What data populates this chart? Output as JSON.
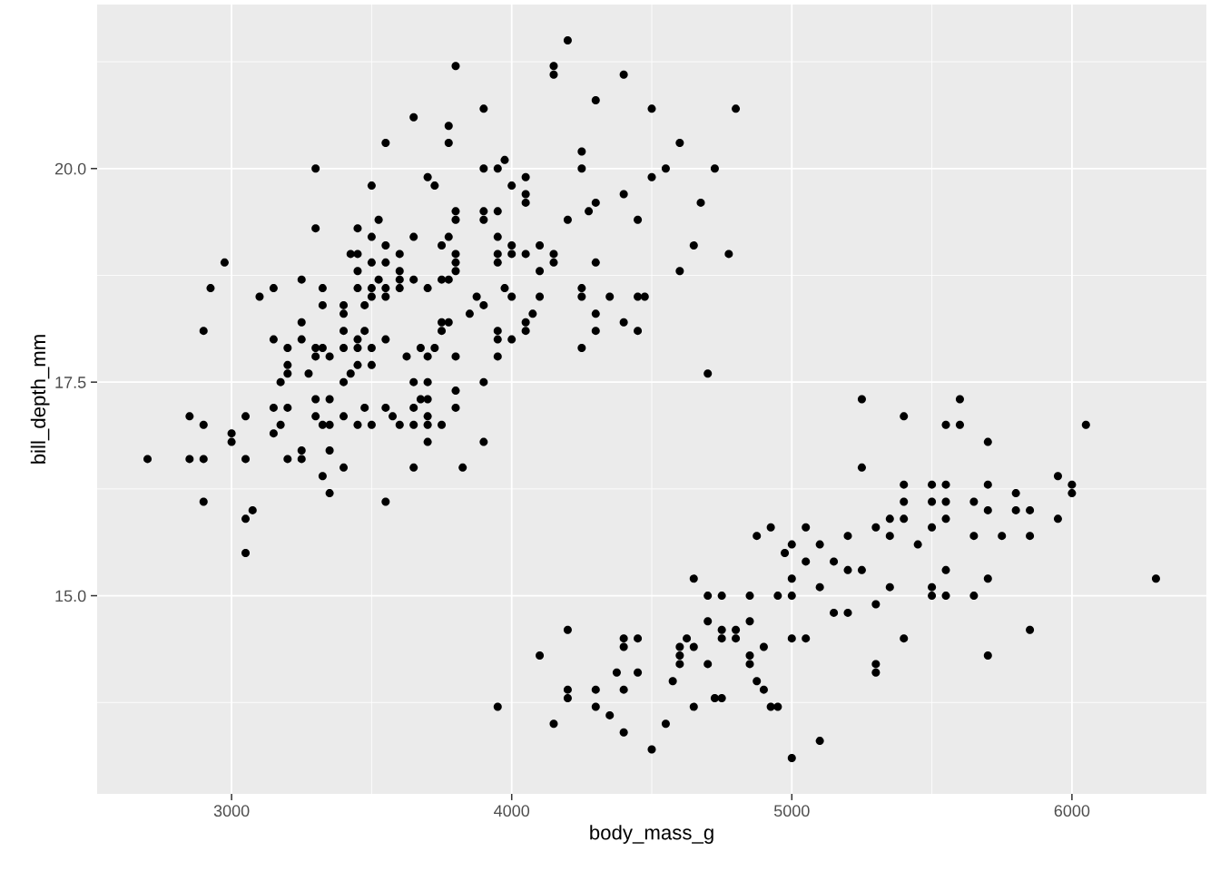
{
  "chart_data": {
    "type": "scatter",
    "xlabel": "body_mass_g",
    "ylabel": "bill_depth_mm",
    "xlim": [
      2520,
      6480
    ],
    "ylim": [
      12.68,
      21.92
    ],
    "xticks": [
      3000,
      4000,
      5000,
      6000
    ],
    "yticks": [
      {
        "value": 15,
        "label": "15.0"
      },
      {
        "value": 17.5,
        "label": "17.5"
      },
      {
        "value": 20,
        "label": "20.0"
      }
    ],
    "grid": true,
    "marker": "circle",
    "series": [
      {
        "color": "#000000",
        "x": [
          2700,
          2850,
          2850,
          2900,
          2900,
          2900,
          2900,
          2925,
          2975,
          3000,
          3000,
          3050,
          3050,
          3050,
          3050,
          3075,
          3100,
          3150,
          3150,
          3150,
          3150,
          3175,
          3175,
          3200,
          3200,
          3200,
          3200,
          3200,
          3250,
          3250,
          3250,
          3250,
          3250,
          3275,
          3300,
          3300,
          3300,
          3300,
          3300,
          3300,
          3325,
          3325,
          3325,
          3325,
          3325,
          3350,
          3350,
          3350,
          3350,
          3350,
          3400,
          3400,
          3400,
          3400,
          3400,
          3400,
          3400,
          3425,
          3425,
          3450,
          3450,
          3450,
          3450,
          3450,
          3450,
          3450,
          3450,
          3475,
          3475,
          3475,
          3500,
          3500,
          3500,
          3500,
          3500,
          3500,
          3500,
          3500,
          3525,
          3525,
          3550,
          3550,
          3550,
          3550,
          3550,
          3550,
          3550,
          3550,
          3575,
          3600,
          3600,
          3600,
          3600,
          3600,
          3625,
          3650,
          3650,
          3650,
          3650,
          3650,
          3650,
          3650,
          3675,
          3675,
          3700,
          3700,
          3700,
          3700,
          3700,
          3700,
          3700,
          3700,
          3725,
          3725,
          3750,
          3750,
          3750,
          3750,
          3750,
          3775,
          3775,
          3775,
          3775,
          3775,
          3800,
          3800,
          3800,
          3800,
          3800,
          3800,
          3800,
          3800,
          3800,
          3825,
          3850,
          3875,
          3900,
          3900,
          3900,
          3900,
          3900,
          3900,
          3900,
          3950,
          3950,
          3950,
          3950,
          3950,
          3950,
          3950,
          3950,
          3950,
          3975,
          3975,
          4000,
          4000,
          4000,
          4000,
          4000,
          4050,
          4050,
          4050,
          4050,
          4050,
          4050,
          4075,
          4100,
          4100,
          4100,
          4150,
          4150,
          4150,
          4150,
          4200,
          4200,
          4250,
          4250,
          4250,
          4250,
          4250,
          4275,
          4300,
          4300,
          4300,
          4300,
          4300,
          4350,
          4400,
          4400,
          4400,
          4450,
          4450,
          4450,
          4475,
          4500,
          4500,
          4550,
          4600,
          4600,
          4650,
          4675,
          4725,
          4775,
          4800,
          4700,
          4100,
          4150,
          4200,
          4200,
          4200,
          4300,
          4300,
          4350,
          4375,
          4400,
          4400,
          4400,
          4400,
          4450,
          4450,
          4500,
          4550,
          4575,
          4600,
          4600,
          4600,
          4625,
          4650,
          4650,
          4650,
          4700,
          4700,
          4700,
          4725,
          4750,
          4750,
          4750,
          4750,
          4800,
          4800,
          4850,
          4850,
          4850,
          4850,
          4875,
          4875,
          4900,
          4900,
          4925,
          4925,
          4950,
          4950,
          4975,
          5000,
          5000,
          5000,
          5000,
          5000,
          5050,
          5050,
          5050,
          5100,
          5100,
          5100,
          5150,
          5150,
          5200,
          5200,
          5200,
          5250,
          5250,
          5250,
          5300,
          5300,
          5300,
          5300,
          5350,
          5350,
          5350,
          5400,
          5400,
          5400,
          5400,
          5400,
          5450,
          5500,
          5500,
          5500,
          5500,
          5500,
          5550,
          5550,
          5550,
          5550,
          5550,
          5550,
          5600,
          5600,
          5650,
          5650,
          5650,
          5700,
          5700,
          5700,
          5700,
          5700,
          5750,
          5800,
          5800,
          5850,
          5850,
          5850,
          5950,
          5950,
          6000,
          6000,
          6050,
          6300
        ],
        "values": [
          16.6,
          17.1,
          16.6,
          17.0,
          16.6,
          16.1,
          18.1,
          18.6,
          18.9,
          16.9,
          16.8,
          17.1,
          16.6,
          15.9,
          15.5,
          16.0,
          18.5,
          18.6,
          18.0,
          17.2,
          16.9,
          17.5,
          17.0,
          17.9,
          17.7,
          17.6,
          17.2,
          16.6,
          18.7,
          18.2,
          18.0,
          16.7,
          16.6,
          17.6,
          20.0,
          19.3,
          17.9,
          17.8,
          17.3,
          17.1,
          18.6,
          18.4,
          17.9,
          16.4,
          17.0,
          17.8,
          17.3,
          16.7,
          16.2,
          17.0,
          18.4,
          18.3,
          18.1,
          17.9,
          17.5,
          17.1,
          16.5,
          19.0,
          17.6,
          19.0,
          19.3,
          18.8,
          18.6,
          18.0,
          17.9,
          17.7,
          17.0,
          18.4,
          18.1,
          17.2,
          19.8,
          19.2,
          18.9,
          18.6,
          18.5,
          17.9,
          17.7,
          17.0,
          19.4,
          18.7,
          20.3,
          19.1,
          18.9,
          18.6,
          18.5,
          18.0,
          17.2,
          16.1,
          17.1,
          19.0,
          18.8,
          18.7,
          18.6,
          17.0,
          17.8,
          20.6,
          19.2,
          18.7,
          17.5,
          17.2,
          17.0,
          16.5,
          17.9,
          17.3,
          19.9,
          18.6,
          17.8,
          17.5,
          17.3,
          17.1,
          16.8,
          17.0,
          19.8,
          17.9,
          19.1,
          18.7,
          18.2,
          18.1,
          17.0,
          20.5,
          20.3,
          19.2,
          18.7,
          18.2,
          21.2,
          19.5,
          19.4,
          19.0,
          18.9,
          18.8,
          17.8,
          17.4,
          17.2,
          16.5,
          18.3,
          18.5,
          20.7,
          20.0,
          19.5,
          19.4,
          18.4,
          17.5,
          16.8,
          20.0,
          19.5,
          19.2,
          19.0,
          18.9,
          18.1,
          18.0,
          17.8,
          13.7,
          20.1,
          18.6,
          19.8,
          19.1,
          19.0,
          18.5,
          18.0,
          19.9,
          19.7,
          19.6,
          19.0,
          18.2,
          18.1,
          18.3,
          19.1,
          18.8,
          18.5,
          19.0,
          18.9,
          21.2,
          21.1,
          21.5,
          19.4,
          20.2,
          20.0,
          18.6,
          18.5,
          17.9,
          19.5,
          20.8,
          19.6,
          18.9,
          18.3,
          18.1,
          18.5,
          21.1,
          19.7,
          18.2,
          19.4,
          18.5,
          18.1,
          18.5,
          20.7,
          19.9,
          20.0,
          20.3,
          18.8,
          19.1,
          19.6,
          20.0,
          19.0,
          20.7,
          17.6,
          14.3,
          13.5,
          14.6,
          13.9,
          13.8,
          13.9,
          13.7,
          13.6,
          14.1,
          14.5,
          14.4,
          13.9,
          13.4,
          14.5,
          14.1,
          13.2,
          13.5,
          14.0,
          14.4,
          14.3,
          14.2,
          14.5,
          15.2,
          14.4,
          13.7,
          15.0,
          14.7,
          14.2,
          13.8,
          15.0,
          14.6,
          14.5,
          13.8,
          14.6,
          14.5,
          15.0,
          14.7,
          14.3,
          14.2,
          14.0,
          15.7,
          14.4,
          13.9,
          15.8,
          13.7,
          15.0,
          13.7,
          15.5,
          15.6,
          15.2,
          15.0,
          14.5,
          13.1,
          15.8,
          15.4,
          14.5,
          15.6,
          15.1,
          13.3,
          15.4,
          14.8,
          15.7,
          15.3,
          14.8,
          17.3,
          16.5,
          15.3,
          15.8,
          14.9,
          14.2,
          14.1,
          15.9,
          15.7,
          15.1,
          17.1,
          16.3,
          16.1,
          15.9,
          14.5,
          15.6,
          16.3,
          16.1,
          15.8,
          15.1,
          15.0,
          17.0,
          16.3,
          16.1,
          15.9,
          15.3,
          15.0,
          17.3,
          17.0,
          16.1,
          15.7,
          15.0,
          16.8,
          16.3,
          16.0,
          15.2,
          14.3,
          15.7,
          16.2,
          16.0,
          16.0,
          15.7,
          14.6,
          16.4,
          15.9,
          16.3,
          16.2,
          17.0,
          15.2
        ]
      }
    ]
  }
}
